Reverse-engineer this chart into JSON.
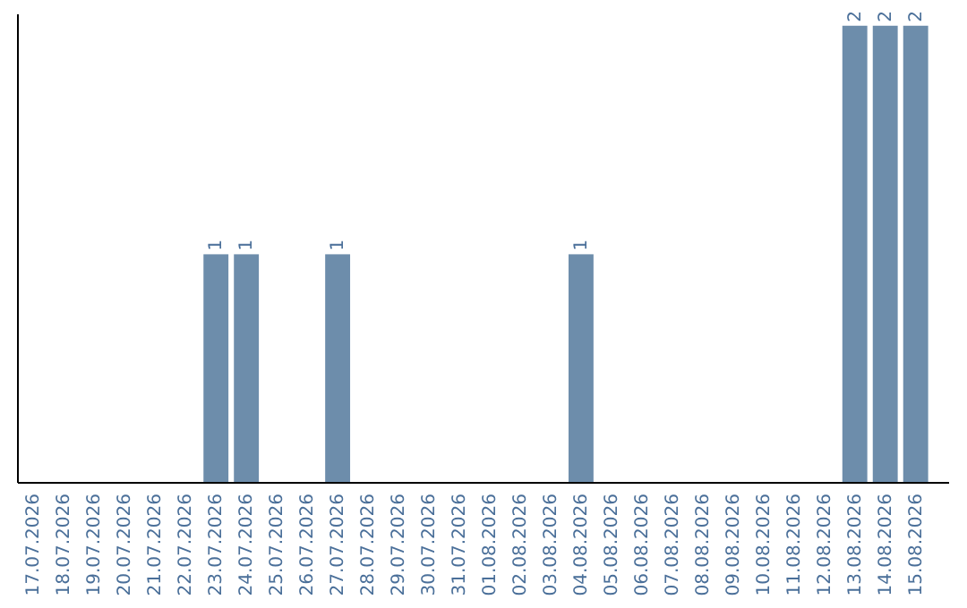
{
  "chart_data": {
    "type": "bar",
    "categories": [
      "17.07.2026",
      "18.07.2026",
      "19.07.2026",
      "20.07.2026",
      "21.07.2026",
      "22.07.2026",
      "23.07.2026",
      "24.07.2026",
      "25.07.2026",
      "26.07.2026",
      "27.07.2026",
      "28.07.2026",
      "29.07.2026",
      "30.07.2026",
      "31.07.2026",
      "01.08.2026",
      "02.08.2026",
      "03.08.2026",
      "04.08.2026",
      "05.08.2026",
      "06.08.2026",
      "07.08.2026",
      "08.08.2026",
      "09.08.2026",
      "10.08.2026",
      "11.08.2026",
      "12.08.2026",
      "13.08.2026",
      "14.08.2026",
      "15.08.2026"
    ],
    "values": [
      0,
      0,
      0,
      0,
      0,
      0,
      1,
      1,
      0,
      0,
      1,
      0,
      0,
      0,
      0,
      0,
      0,
      0,
      1,
      0,
      0,
      0,
      0,
      0,
      0,
      0,
      0,
      2,
      2,
      2
    ],
    "value_labels": [
      null,
      null,
      null,
      null,
      null,
      null,
      "1",
      "1",
      null,
      null,
      "1",
      null,
      null,
      null,
      null,
      null,
      null,
      null,
      "1",
      null,
      null,
      null,
      null,
      null,
      null,
      null,
      null,
      "2",
      "2",
      "2"
    ],
    "color": "#6d8dab",
    "ylim": [
      0,
      2.05
    ]
  }
}
